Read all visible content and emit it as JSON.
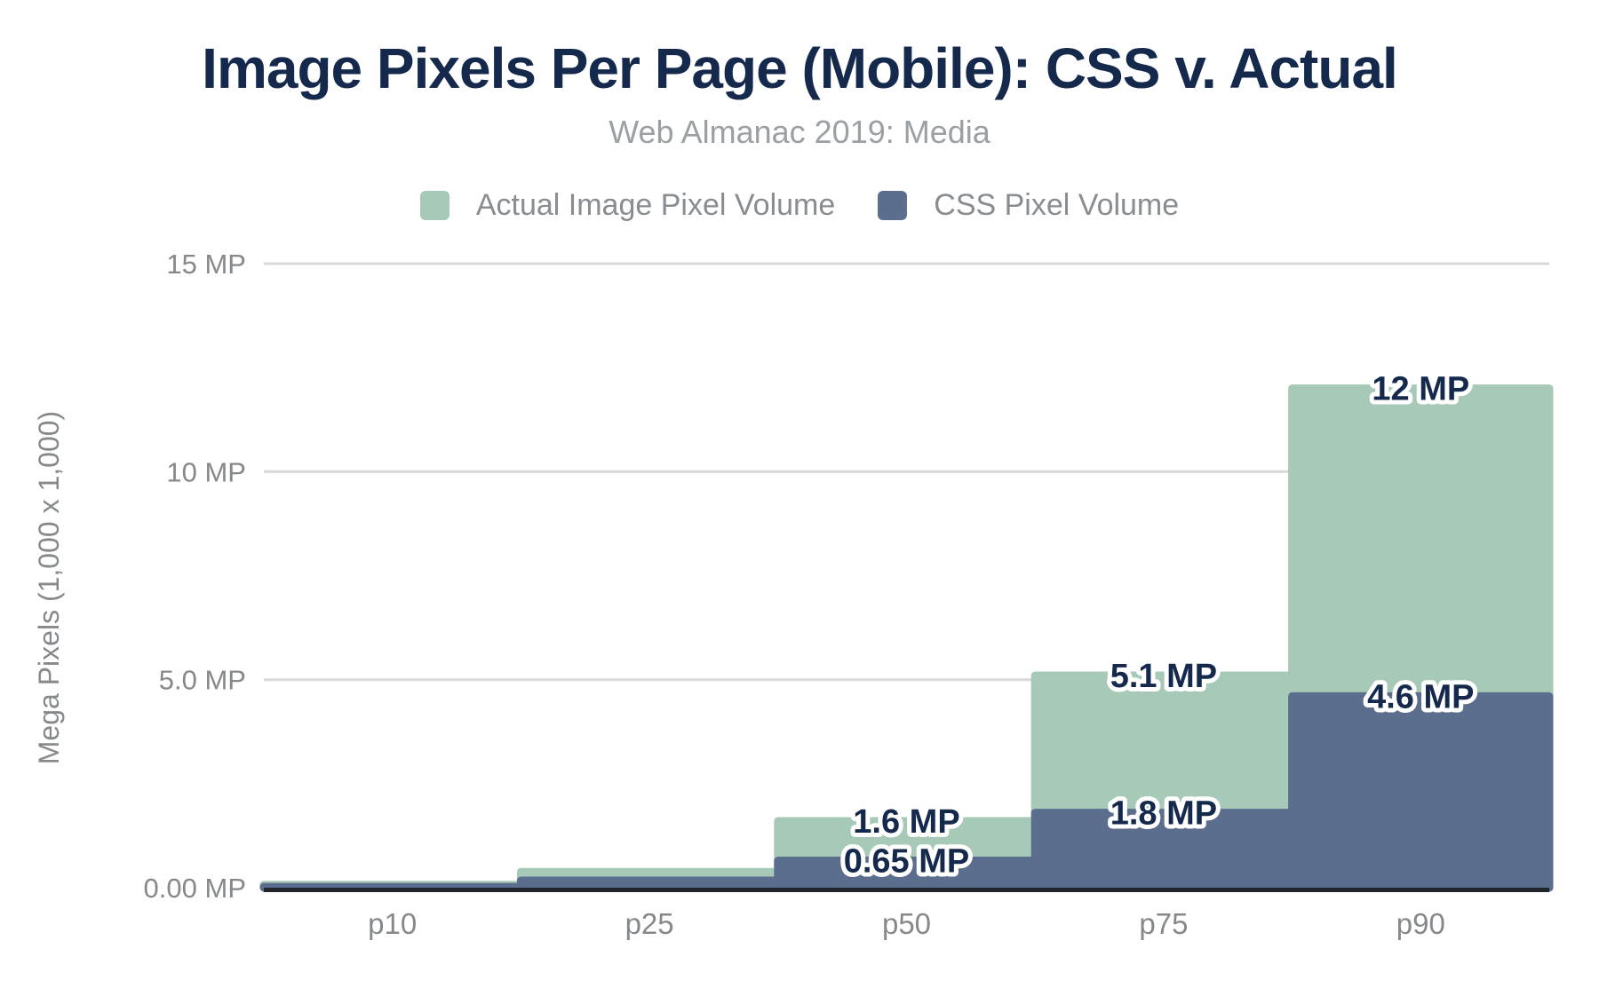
{
  "page": {
    "background": "#ffffff"
  },
  "header": {
    "title": "Image Pixels Per Page (Mobile): CSS v. Actual",
    "subtitle": "Web Almanac 2019: Media"
  },
  "chart_data": {
    "type": "area",
    "step": true,
    "title": "Image Pixels Per Page (Mobile): CSS v. Actual",
    "subtitle": "Web Almanac 2019: Media",
    "categories": [
      "p10",
      "p25",
      "p50",
      "p75",
      "p90"
    ],
    "series": [
      {
        "name": "Actual Image Pixel Volume",
        "color": "#a7c9b7",
        "values": [
          0.07,
          0.38,
          1.6,
          5.1,
          12
        ],
        "point_labels": [
          "",
          "",
          "1.6 MP",
          "5.1 MP",
          "12 MP"
        ]
      },
      {
        "name": "CSS Pixel Volume",
        "color": "#5c6e8d",
        "values": [
          0.02,
          0.17,
          0.65,
          1.8,
          4.6
        ],
        "point_labels": [
          "",
          "",
          "0.65 MP",
          "1.8 MP",
          "4.6 MP"
        ]
      }
    ],
    "xlabel": "",
    "ylabel": "Mega Pixels (1,000 x 1,000)",
    "ylim": [
      0,
      15
    ],
    "yticks": [
      {
        "value": 0,
        "label": "0.00 MP"
      },
      {
        "value": 5,
        "label": "5.0 MP"
      },
      {
        "value": 10,
        "label": "10 MP"
      },
      {
        "value": 15,
        "label": "15 MP"
      }
    ],
    "grid": true,
    "legend_position": "top",
    "colors": {
      "grid_line": "#d8d8d8",
      "axis_line": "#22252c",
      "tick_label": "#86898c",
      "data_label": "#14294b",
      "data_label_outline": "#ffffff"
    }
  }
}
